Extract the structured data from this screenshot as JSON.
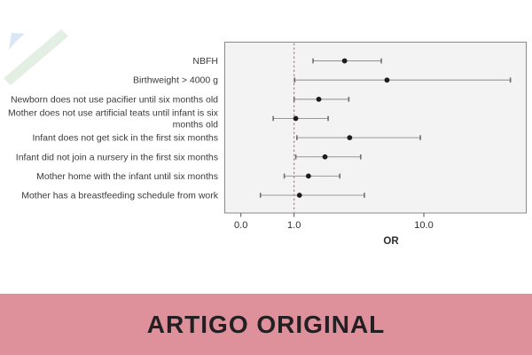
{
  "page": {
    "background": "#ffffff"
  },
  "decor": {
    "stripe_blue_color": "#d8e7f6",
    "stripe_green_color": "#e4efe3"
  },
  "banner": {
    "label": "ARTIGO ORIGINAL",
    "background": "#de919b",
    "text_color": "#232023"
  },
  "chart_data": {
    "type": "scatter",
    "subtype": "forest-plot",
    "title": "",
    "xlabel": "OR",
    "ylabel": "",
    "xaxis_ticks": [
      "0.0",
      "1.0",
      "10.0"
    ],
    "x_scale": "log-like",
    "reference_line": 1.0,
    "reference_line_color": "#c45f5c",
    "plot_bg": "#f3f3f4",
    "plot_border": "#8a8a8a",
    "point_color": "#1c1c1c",
    "ci_color": "#989898",
    "ci_cap_color": "#6f6f6f",
    "label_color": "#3a3a3a",
    "tick_label_color": "#2e2e2e",
    "rows": [
      {
        "label": "NBFH",
        "label_lines": [
          "NBFH"
        ],
        "or": 2.45,
        "ci_low": 1.4,
        "ci_high": 4.7
      },
      {
        "label": "Birthweight > 4000 g",
        "label_lines": [
          "Birthweight > 4000 g"
        ],
        "or": 5.2,
        "ci_low": 1.01,
        "ci_high": 46.5
      },
      {
        "label": "Newborn does not use pacifier until six months old",
        "label_lines": [
          "Newborn does not use pacifier until six months old"
        ],
        "or": 1.55,
        "ci_low": 1.0,
        "ci_high": 2.64
      },
      {
        "label": "Mother does not use artificial teats until infant is six months old",
        "label_lines": [
          "Mother does not use artificial teats until infant is six",
          "months old"
        ],
        "or": 1.03,
        "ci_low": 0.69,
        "ci_high": 1.83
      },
      {
        "label": "Infant does not get sick in the first six months",
        "label_lines": [
          "Infant does not get sick in the first six months"
        ],
        "or": 2.68,
        "ci_low": 1.05,
        "ci_high": 9.4
      },
      {
        "label": "Infant did not join a nursery in the first six months",
        "label_lines": [
          "Infant did not join a nursery in the first six months"
        ],
        "or": 1.73,
        "ci_low": 1.03,
        "ci_high": 3.26
      },
      {
        "label": "Mother home with the infant until six months",
        "label_lines": [
          "Mother home with the infant until six months"
        ],
        "or": 1.29,
        "ci_low": 0.84,
        "ci_high": 2.25
      },
      {
        "label": "Mother has a breastfeeding schedule from work",
        "label_lines": [
          "Mother has a breastfeeding schedule from work"
        ],
        "or": 1.1,
        "ci_low": 0.55,
        "ci_high": 3.48
      }
    ]
  }
}
